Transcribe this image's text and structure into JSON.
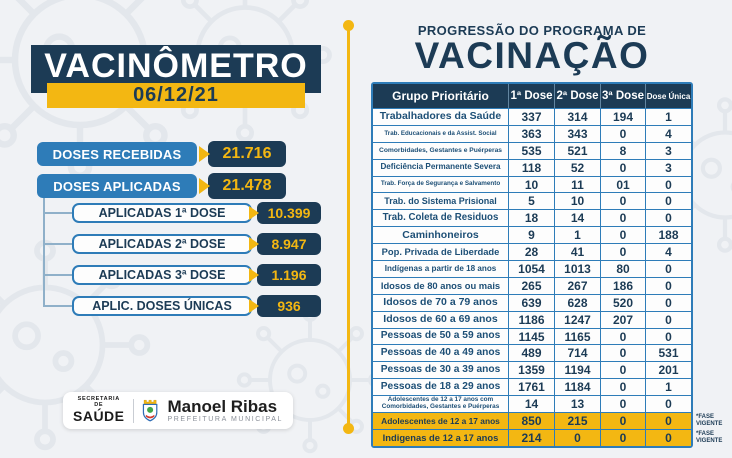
{
  "colors": {
    "navy": "#1C3B55",
    "yellow": "#F3B712",
    "blue": "#2E7CB8",
    "background": "#F0F2F5"
  },
  "left_panel": {
    "title": "VACINÔMETRO",
    "date": "06/12/21",
    "stats": [
      {
        "label": "DOSES RECEBIDAS",
        "value": "21.716"
      },
      {
        "label": "DOSES APLICADAS",
        "value": "21.478"
      }
    ],
    "breakdown": [
      {
        "label": "APLICADAS 1ª DOSE",
        "value": "10.399"
      },
      {
        "label": "APLICADAS 2ª DOSE",
        "value": "8.947"
      },
      {
        "label": "APLICADAS 3ª DOSE",
        "value": "1.196"
      },
      {
        "label": "APLIC. DOSES ÚNICAS",
        "value": "936"
      }
    ],
    "footer": {
      "org_top": "SECRETARIA DE",
      "org_name": "SAÚDE",
      "city_name": "Manoel Ribas",
      "city_subtitle": "PREFEITURA MUNICIPAL"
    }
  },
  "right_panel": {
    "title_line1": "PROGRESSÃO DO PROGRAMA DE",
    "title_line2": "VACINAÇÃO",
    "table": {
      "headers": [
        "Grupo Prioritário",
        "1ª Dose",
        "2ª Dose",
        "3ª Dose",
        "Dose Única"
      ],
      "note_lines": [
        "*FASE",
        "VIGENTE"
      ],
      "rows": [
        {
          "label": "Trabalhadores da Saúde",
          "values": [
            "337",
            "314",
            "194",
            "1"
          ]
        },
        {
          "label": "Trab. Educacionais e da Assist. Social",
          "values": [
            "363",
            "343",
            "0",
            "4"
          ]
        },
        {
          "label": "Comorbidades, Gestantes e Puérperas",
          "values": [
            "535",
            "521",
            "8",
            "3"
          ]
        },
        {
          "label": "Deficiência Permanente Severa",
          "values": [
            "118",
            "52",
            "0",
            "3"
          ]
        },
        {
          "label": "Trab. Força de Segurança e Salvamento",
          "values": [
            "10",
            "11",
            "01",
            "0"
          ]
        },
        {
          "label": "Trab. do Sistema Prisional",
          "values": [
            "5",
            "10",
            "0",
            "0"
          ]
        },
        {
          "label": "Trab. Coleta de Residuos",
          "values": [
            "18",
            "14",
            "0",
            "0"
          ]
        },
        {
          "label": "Caminhoneiros",
          "values": [
            "9",
            "1",
            "0",
            "188"
          ]
        },
        {
          "label": "Pop. Privada de Liberdade",
          "values": [
            "28",
            "41",
            "0",
            "4"
          ]
        },
        {
          "label": "Indígenas a partir de 18 anos",
          "values": [
            "1054",
            "1013",
            "80",
            "0"
          ]
        },
        {
          "label": "Idosos de 80 anos ou mais",
          "values": [
            "265",
            "267",
            "186",
            "0"
          ]
        },
        {
          "label": "Idosos de 70 a 79 anos",
          "values": [
            "639",
            "628",
            "520",
            "0"
          ]
        },
        {
          "label": "Idosos de 60 a 69 anos",
          "values": [
            "1186",
            "1247",
            "207",
            "0"
          ]
        },
        {
          "label": "Pessoas de 50 a 59 anos",
          "values": [
            "1145",
            "1165",
            "0",
            "0"
          ]
        },
        {
          "label": "Pessoas de 40 a 49 anos",
          "values": [
            "489",
            "714",
            "0",
            "531"
          ]
        },
        {
          "label": "Pessoas de 30 a 39 anos",
          "values": [
            "1359",
            "1194",
            "0",
            "201"
          ]
        },
        {
          "label": "Pessoas de 18 a 29 anos",
          "values": [
            "1761",
            "1184",
            "0",
            "1"
          ]
        },
        {
          "label": "Adolescentes de 12 a 17 anos com Comorbidades, Gestantes e Puérperas",
          "values": [
            "14",
            "13",
            "0",
            "0"
          ]
        },
        {
          "label": "Adolescentes de 12 a 17 anos",
          "values": [
            "850",
            "215",
            "0",
            "0"
          ],
          "highlighted": true,
          "note": "*FASE VIGENTE"
        },
        {
          "label": "Indigenas de 12 a 17 anos",
          "values": [
            "214",
            "0",
            "0",
            "0"
          ],
          "highlighted": true,
          "note": "*FASE VIGENTE"
        }
      ]
    }
  }
}
